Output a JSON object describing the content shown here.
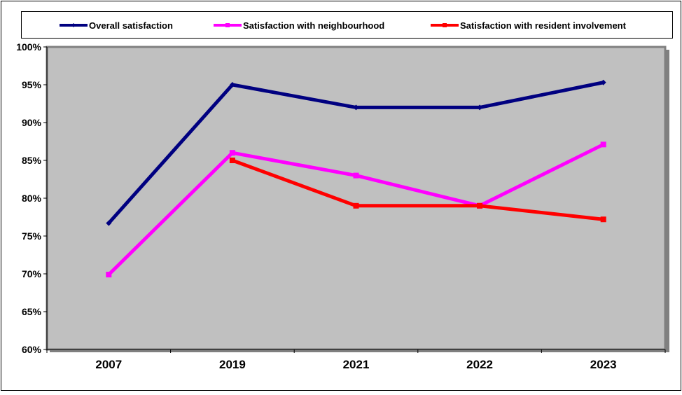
{
  "chart_data": {
    "type": "line",
    "categories": [
      "2007",
      "2019",
      "2021",
      "2022",
      "2023"
    ],
    "series": [
      {
        "name": "Overall satisfaction",
        "values": [
          76.7,
          95.0,
          92.0,
          92.0,
          95.3
        ],
        "color": "#000080",
        "marker": "diamond"
      },
      {
        "name": "Satisfaction with neighbourhood",
        "values": [
          69.9,
          86.0,
          83.0,
          79.0,
          87.1
        ],
        "color": "#FF00FF",
        "marker": "square"
      },
      {
        "name": "Satisfaction with resident involvement",
        "values": [
          null,
          85.0,
          79.0,
          79.0,
          77.2
        ],
        "color": "#FF0000",
        "marker": "square"
      }
    ],
    "ylim": [
      60,
      100
    ],
    "yticks": [
      "60%",
      "65%",
      "70%",
      "75%",
      "80%",
      "85%",
      "90%",
      "95%",
      "100%"
    ],
    "ytick_values": [
      60,
      65,
      70,
      75,
      80,
      85,
      90,
      95,
      100
    ],
    "grid": false,
    "legend_position": "top",
    "plot_background": "#C0C0C0",
    "title": "",
    "xlabel": "",
    "ylabel": ""
  }
}
